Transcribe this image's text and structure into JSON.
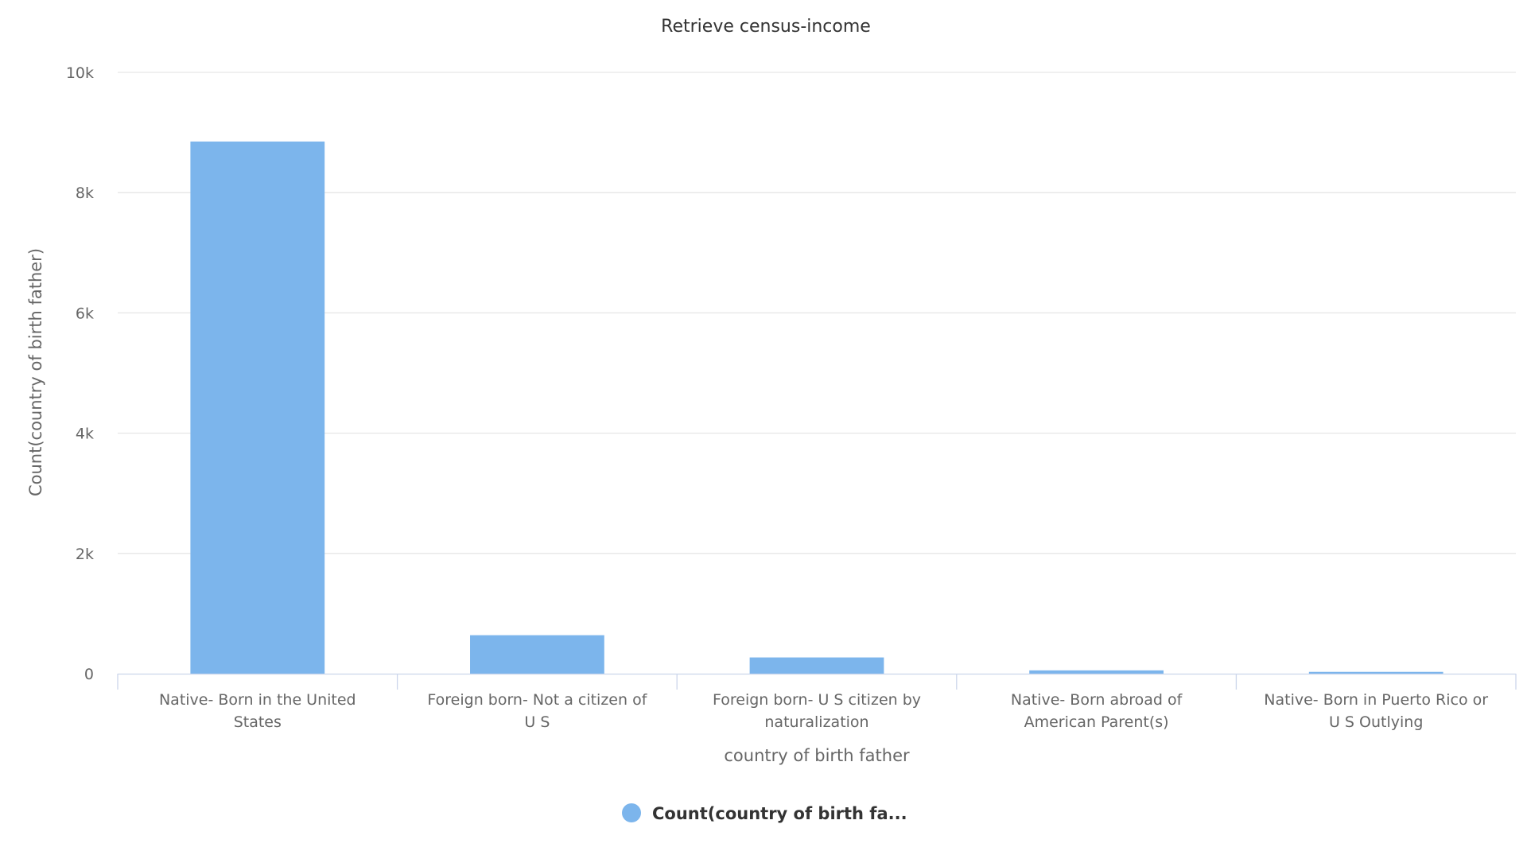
{
  "chart_data": {
    "type": "bar",
    "title": "Retrieve census-income",
    "xlabel": "country of birth father",
    "ylabel": "Count(country of birth father)",
    "categories": [
      [
        "Native- Born in the United",
        "States"
      ],
      [
        "Foreign born- Not a citizen of",
        "U S"
      ],
      [
        "Foreign born- U S citizen by",
        "naturalization"
      ],
      [
        "Native- Born abroad of",
        "American Parent(s)"
      ],
      [
        "Native- Born in Puerto Rico or",
        "U S Outlying"
      ]
    ],
    "series": [
      {
        "name": "Count(country of birth fa...",
        "values": [
          8850,
          640,
          270,
          55,
          30
        ]
      }
    ],
    "ylim": [
      0,
      10000
    ],
    "yticks": [
      0,
      2000,
      4000,
      6000,
      8000,
      10000
    ],
    "ytick_labels": [
      "0",
      "2k",
      "4k",
      "6k",
      "8k",
      "10k"
    ],
    "grid": true,
    "legend_position": "bottom-center",
    "colors": {
      "bar": "#7cb5ec",
      "grid": "#e6e6e6",
      "axis": "#ccd6eb"
    }
  }
}
